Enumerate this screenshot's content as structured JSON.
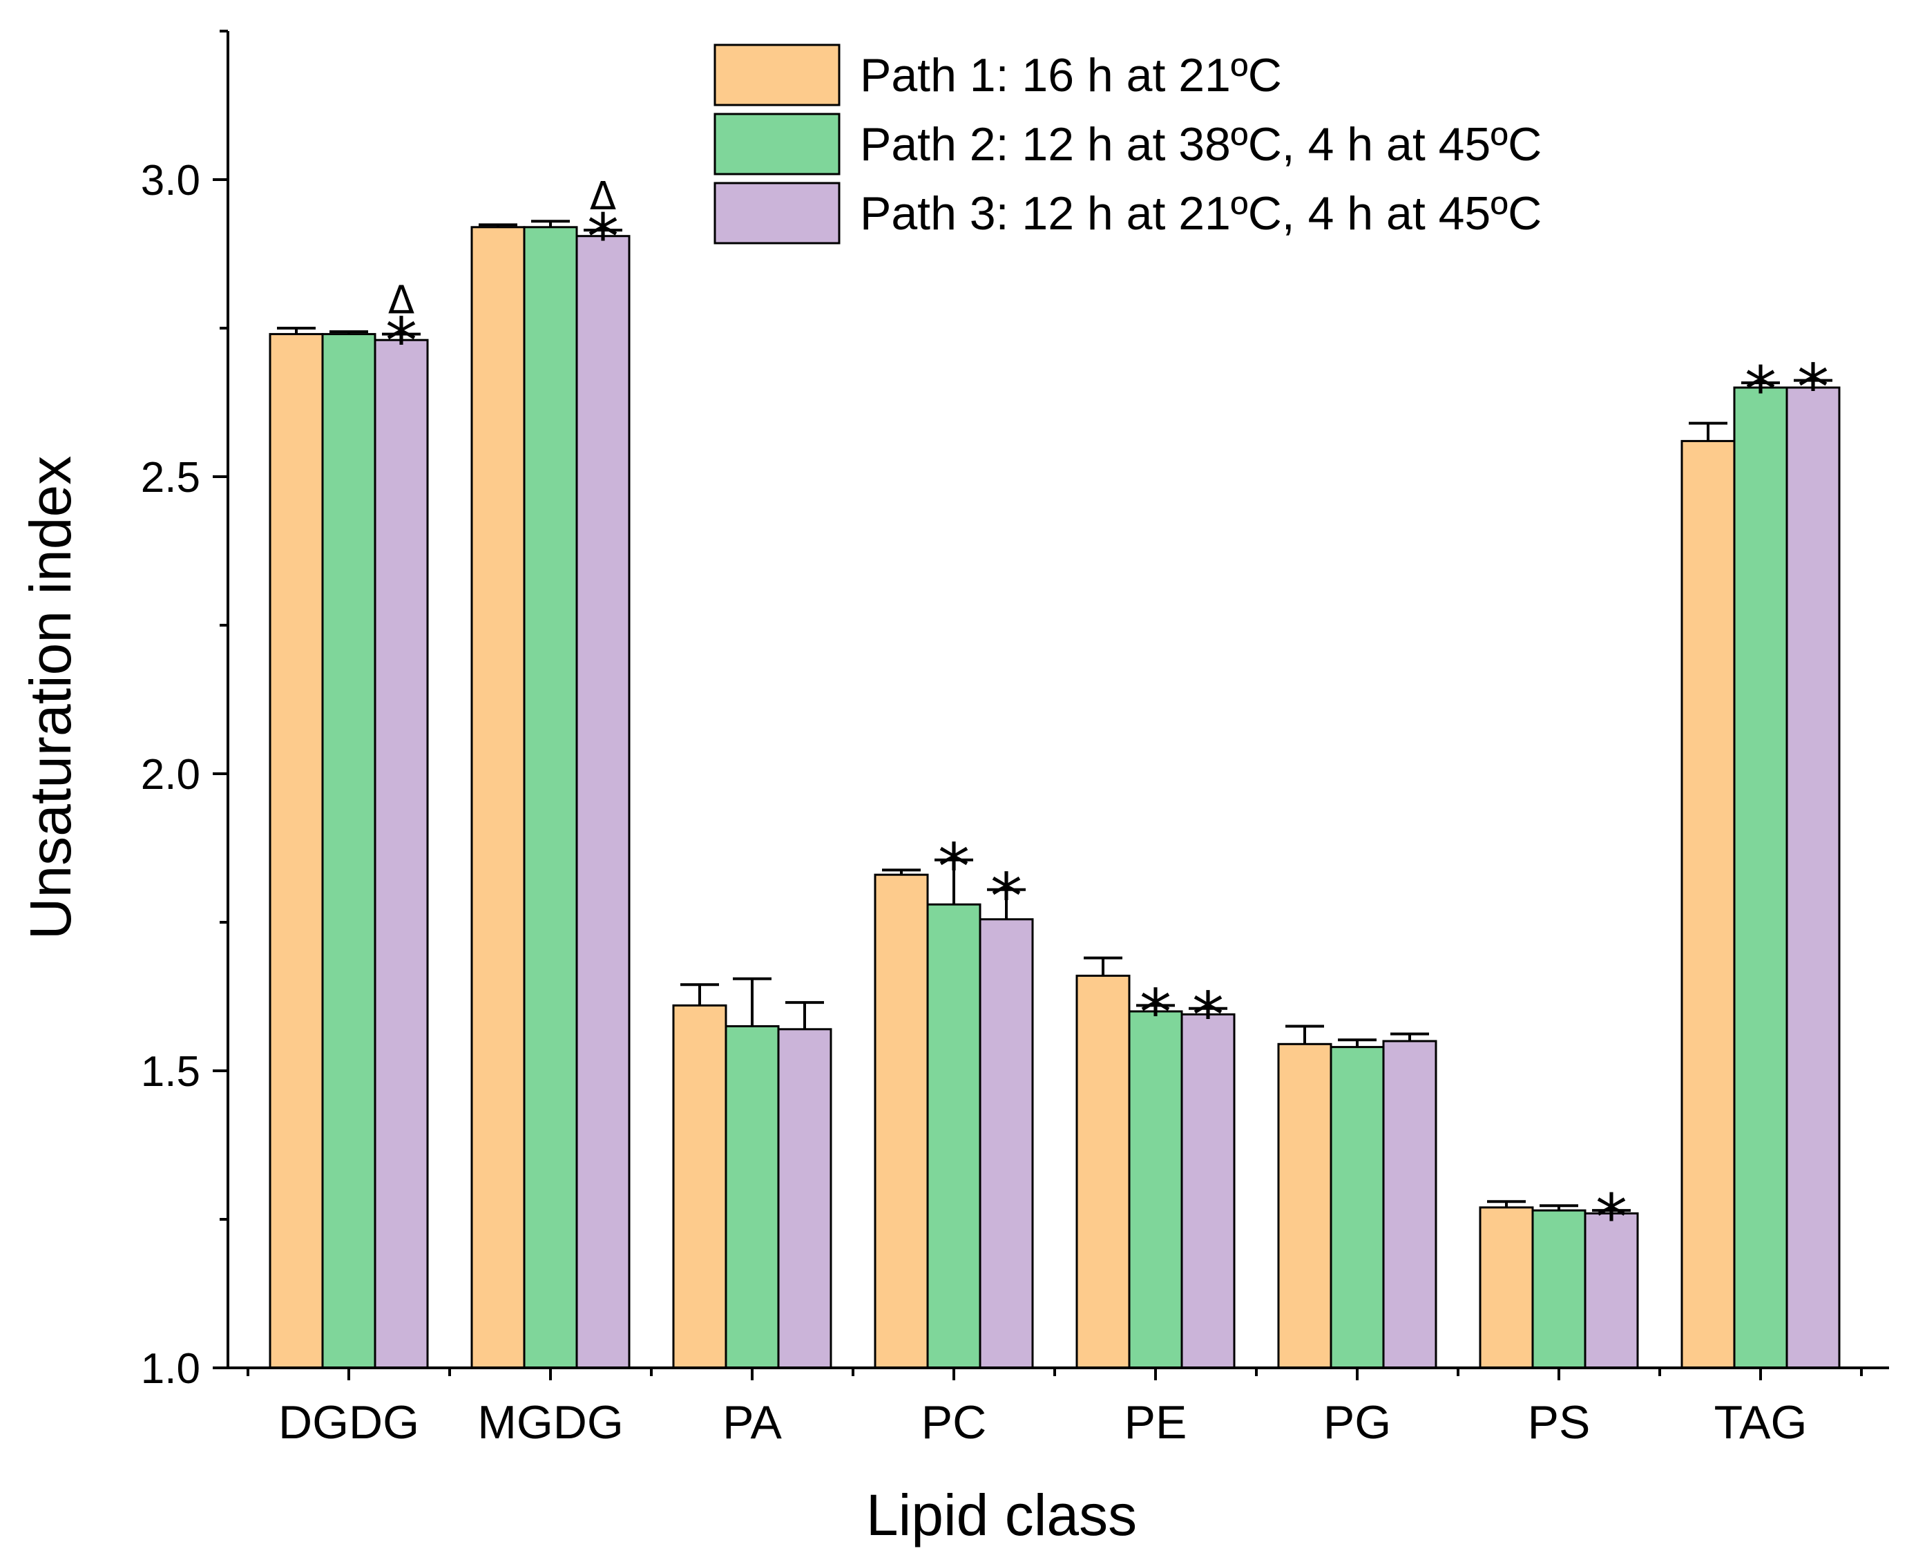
{
  "chart_data": {
    "type": "bar",
    "title": "",
    "xlabel": "Lipid class",
    "ylabel": "Unsaturation index",
    "ylim": [
      1.0,
      3.25
    ],
    "yticks": [
      "1.0",
      "1.5",
      "2.0",
      "2.5",
      "3.0"
    ],
    "ytick_values": [
      1.0,
      1.5,
      2.0,
      2.5,
      3.0
    ],
    "grid": false,
    "legend_position": "top",
    "categories": [
      "DGDG",
      "MGDG",
      "PA",
      "PC",
      "PE",
      "PG",
      "PS",
      "TAG"
    ],
    "series": [
      {
        "name": "Path 1: 16 h at 21ºC",
        "color": "#fdcb8c",
        "values": [
          2.74,
          2.92,
          1.61,
          1.83,
          1.66,
          1.545,
          1.27,
          2.56
        ],
        "errors": [
          0.01,
          0.004,
          0.035,
          0.008,
          0.03,
          0.03,
          0.01,
          0.03
        ],
        "markers": [
          "",
          "",
          "",
          "",
          "",
          "",
          "",
          ""
        ]
      },
      {
        "name": "Path 2: 12 h at 38ºC, 4 h at 45ºC",
        "color": "#7fd69a",
        "values": [
          2.74,
          2.92,
          1.575,
          1.78,
          1.6,
          1.54,
          1.265,
          2.65
        ],
        "errors": [
          0.004,
          0.01,
          0.08,
          0.075,
          0.01,
          0.012,
          0.008,
          0.008
        ],
        "markers": [
          "",
          "",
          "",
          "*",
          "*",
          "",
          "",
          "*"
        ]
      },
      {
        "name": "Path 3: 12 h at 21ºC, 4 h at 45ºC",
        "color": "#cbb4d9",
        "values": [
          2.73,
          2.905,
          1.57,
          1.755,
          1.595,
          1.55,
          1.26,
          2.65
        ],
        "errors": [
          0.01,
          0.01,
          0.045,
          0.05,
          0.01,
          0.012,
          0.005,
          0.012
        ],
        "markers": [
          "*",
          "*",
          "",
          "*",
          "*",
          "",
          "*",
          "*"
        ],
        "delta_markers": [
          "Δ",
          "Δ",
          "",
          "",
          "",
          "",
          "",
          ""
        ]
      }
    ]
  }
}
